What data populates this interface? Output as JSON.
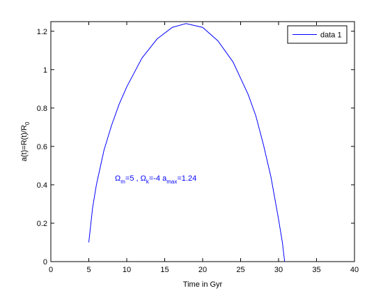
{
  "chart_data": {
    "type": "line",
    "x_label": "Time in Gyr",
    "y_label": {
      "text": "a(t)=R(t)/R",
      "sub": "0"
    },
    "annotation": {
      "color": "#0000ff",
      "parts": [
        {
          "text": "Ω",
          "sub": "m"
        },
        {
          "text": "=5 , Ω",
          "sub": "k"
        },
        {
          "text": "=-4 a",
          "sub": "max"
        },
        {
          "text": "=1.24"
        }
      ]
    },
    "x": [
      5,
      5.5,
      6,
      7,
      8,
      9,
      10,
      12,
      14,
      16,
      17.8,
      20,
      22,
      24,
      26,
      27,
      28,
      29,
      30,
      30.5,
      30.8
    ],
    "series": [
      {
        "name": "data 1",
        "color": "#0000ff",
        "values": [
          0.1,
          0.28,
          0.4,
          0.58,
          0.71,
          0.82,
          0.91,
          1.06,
          1.16,
          1.22,
          1.24,
          1.22,
          1.15,
          1.04,
          0.87,
          0.76,
          0.61,
          0.44,
          0.22,
          0.1,
          0
        ]
      }
    ],
    "xlim": [
      0,
      40
    ],
    "xticks": [
      0,
      5,
      10,
      15,
      20,
      25,
      30,
      35,
      40
    ],
    "ylim": [
      0,
      1.25
    ],
    "yticks": [
      0,
      0.2,
      0.4,
      0.6,
      0.8,
      1,
      1.2
    ],
    "legend": "northeast"
  }
}
